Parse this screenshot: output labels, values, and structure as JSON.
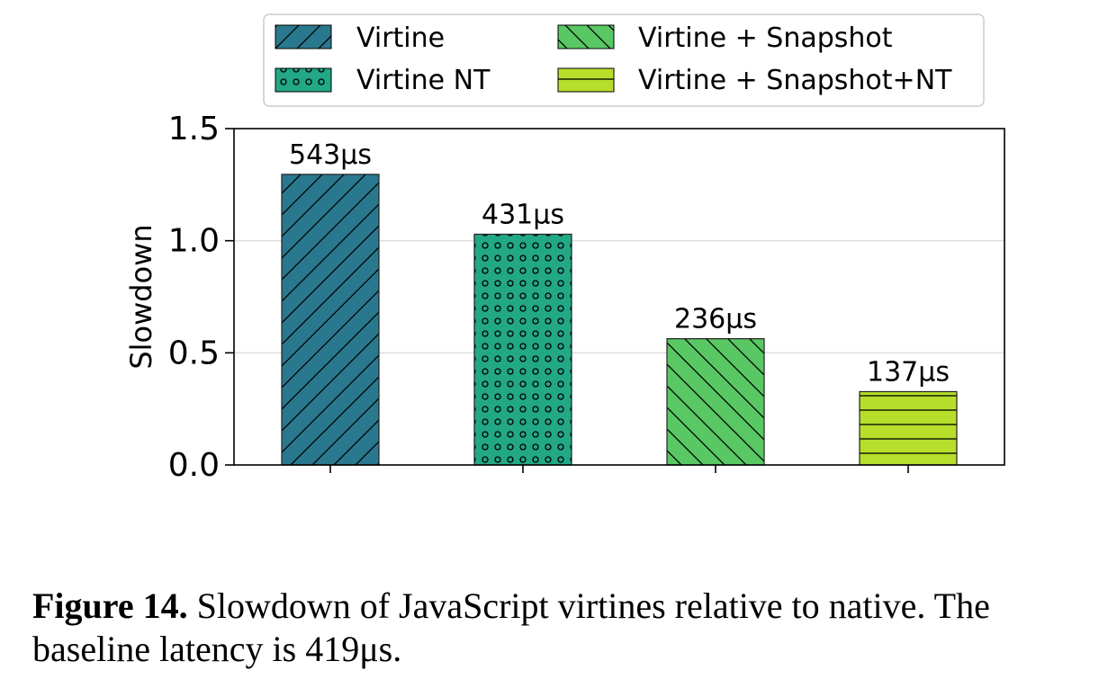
{
  "chart_data": {
    "type": "bar",
    "categories": [
      "Virtine",
      "Virtine NT",
      "Virtine + Snapshot",
      "Virtine + Snapshot+NT"
    ],
    "values": [
      1.296,
      1.029,
      0.563,
      0.327
    ],
    "data_labels": [
      "543μs",
      "431μs",
      "236μs",
      "137μs"
    ],
    "colors": [
      "#2a788e",
      "#22a884",
      "#59c864",
      "#b7de2a"
    ],
    "hatches": [
      "diagonal-up",
      "dots",
      "diagonal-down",
      "horizontal"
    ],
    "ylabel": "Slowdown",
    "ylim": [
      0,
      1.5
    ],
    "yticks": [
      "0.0",
      "0.5",
      "1.0",
      "1.5"
    ],
    "grid": "horizontal",
    "legend": {
      "placement": "top",
      "entries": [
        "Virtine",
        "Virtine NT",
        "Virtine + Snapshot",
        "Virtine + Snapshot+NT"
      ]
    }
  },
  "caption": {
    "label": "Figure 14.",
    "text": " Slowdown of JavaScript virtines relative to native. The baseline latency is 419μs."
  }
}
